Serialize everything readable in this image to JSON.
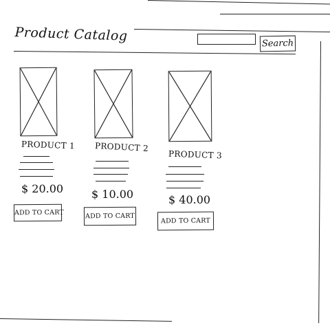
{
  "header": {
    "title": "Product Catalog",
    "search_placeholder": "",
    "search_value": "",
    "search_label": "Search"
  },
  "products": [
    {
      "name": "PRODUCT 1",
      "price": "$ 20.00",
      "button_label": "ADD TO CART"
    },
    {
      "name": "PRODUCT 2",
      "price": "$ 10.00",
      "button_label": "ADD TO CART"
    },
    {
      "name": "PRODUCT 3",
      "price": "$ 40.00",
      "button_label": "ADD TO CART"
    }
  ],
  "icons": {
    "product_image": "image-placeholder-icon"
  }
}
